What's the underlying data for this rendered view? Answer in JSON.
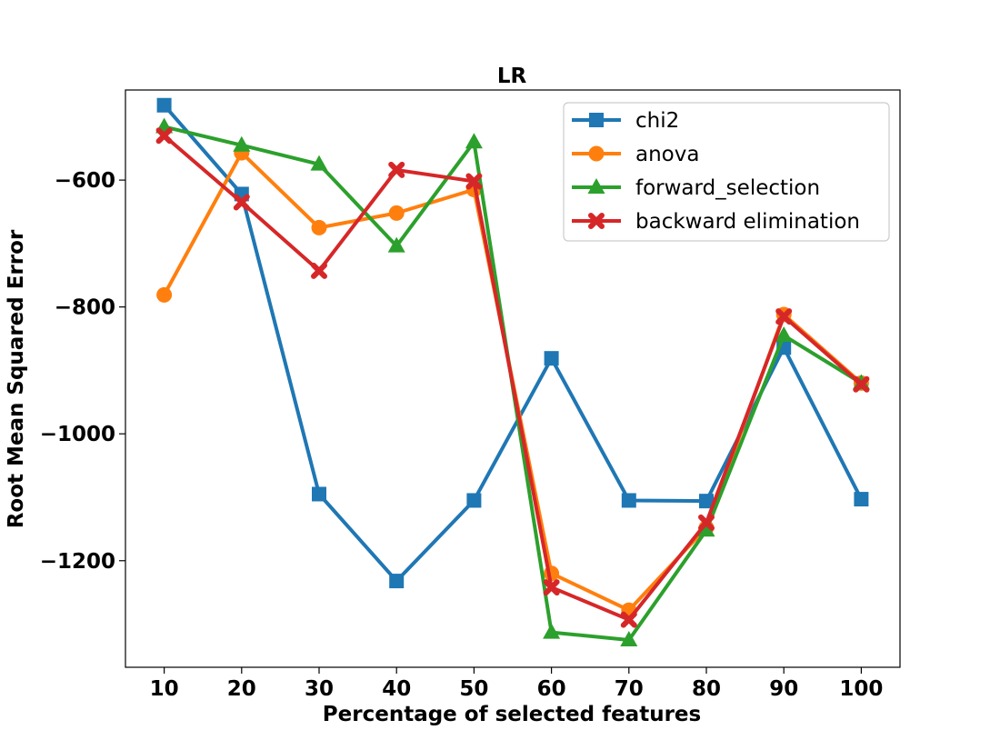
{
  "chart_data": {
    "type": "line",
    "title": "LR",
    "xlabel": "Percentage of selected features",
    "ylabel": "Root Mean Squared Error",
    "x": [
      10,
      20,
      30,
      40,
      50,
      60,
      70,
      80,
      90,
      100
    ],
    "xlim": [
      5,
      105
    ],
    "ylim": [
      -1368,
      -458
    ],
    "yticks": [
      -600,
      -800,
      -1000,
      -1200
    ],
    "ytick_labels": [
      "−600",
      "−800",
      "−1000",
      "−1200"
    ],
    "xtick_labels": [
      "10",
      "20",
      "30",
      "40",
      "50",
      "60",
      "70",
      "80",
      "90",
      "100"
    ],
    "grid": false,
    "legend_position": "top-right",
    "series": [
      {
        "name": "chi2",
        "color": "#1f77b4",
        "marker": "square",
        "values": [
          -482,
          -622,
          -1095,
          -1232,
          -1105,
          -881,
          -1105,
          -1106,
          -864,
          -1103
        ]
      },
      {
        "name": "anova",
        "color": "#ff7f0e",
        "marker": "circle",
        "values": [
          -781,
          -557,
          -675,
          -652,
          -615,
          -1220,
          -1278,
          -1148,
          -812,
          -920
        ]
      },
      {
        "name": "forward_selection",
        "color": "#2ca02c",
        "marker": "triangle",
        "values": [
          -516,
          -545,
          -575,
          -704,
          -540,
          -1313,
          -1325,
          -1152,
          -845,
          -920
        ]
      },
      {
        "name": "backward elimination",
        "color": "#d62728",
        "marker": "x",
        "values": [
          -530,
          -635,
          -743,
          -584,
          -602,
          -1242,
          -1293,
          -1140,
          -815,
          -922
        ]
      }
    ]
  }
}
